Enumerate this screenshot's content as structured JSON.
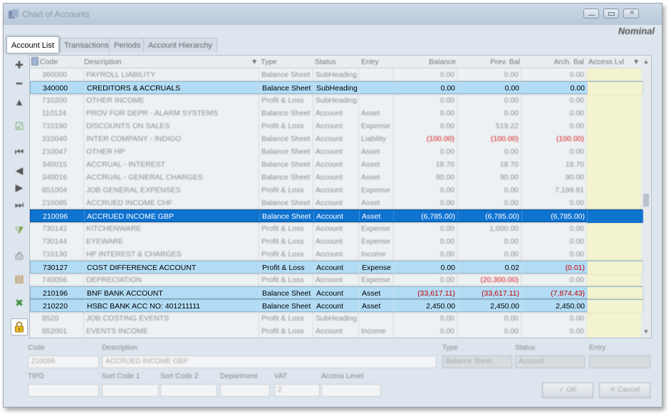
{
  "window": {
    "title": "Chart of Accounts",
    "brand": "Nominal"
  },
  "tabs": [
    "Account List",
    "Transactions",
    "Periods",
    "Account Hierarchy"
  ],
  "toolbar": {
    "icons": [
      "add-icon",
      "remove-icon",
      "up-icon",
      "check-icon",
      "first-icon",
      "prev-icon",
      "next-icon",
      "last-icon",
      "filter-icon",
      "print-icon",
      "report-icon",
      "excel-icon",
      "lock-icon"
    ]
  },
  "grid": {
    "headers": [
      "Code",
      "Description",
      "Type",
      "Status",
      "Entry",
      "Balance",
      "Prev. Bal",
      "Arch. Bal",
      "Access Lvl"
    ],
    "rows": [
      {
        "style": "dim",
        "code": "360000",
        "desc": "PAYROLL LIABILITY",
        "type": "Balance Sheet",
        "status": "SubHeading",
        "entry": "",
        "bal": "0.00",
        "prev": "0.00",
        "arch": "0.00"
      },
      {
        "style": "sharp",
        "code": "340000",
        "desc": "CREDITORS & ACCRUALS",
        "type": "Balance Sheet",
        "status": "SubHeading",
        "entry": "",
        "bal": "0.00",
        "prev": "0.00",
        "arch": "0.00"
      },
      {
        "style": "dim",
        "code": "710200",
        "desc": "OTHER INCOME",
        "type": "Profit & Loss",
        "status": "SubHeading",
        "entry": "",
        "bal": "0.00",
        "prev": "0.00",
        "arch": "0.00"
      },
      {
        "style": "dim",
        "code": "110124",
        "desc": "PROV FOR DEPR - ALARM SYSTEMS",
        "type": "Balance Sheet",
        "status": "Account",
        "entry": "Asset",
        "bal": "0.00",
        "prev": "0.00",
        "arch": "0.00"
      },
      {
        "style": "dim",
        "code": "710190",
        "desc": "DISCOUNTS ON SALES",
        "type": "Profit & Loss",
        "status": "Account",
        "entry": "Expense",
        "bal": "0.00",
        "prev": "519.22",
        "arch": "0.00"
      },
      {
        "style": "dim",
        "code": "310040",
        "desc": "INTER COMPANY - INDIGO",
        "type": "Balance Sheet",
        "status": "Account",
        "entry": "Liability",
        "bal": "(100.00)",
        "prev": "(100.00)",
        "arch": "(100.00)",
        "neg": true
      },
      {
        "style": "dim",
        "code": "210047",
        "desc": "OTHER HP",
        "type": "Balance Sheet",
        "status": "Account",
        "entry": "Asset",
        "bal": "0.00",
        "prev": "0.00",
        "arch": "0.00"
      },
      {
        "style": "dim",
        "code": "340015",
        "desc": "ACCRUAL - INTEREST",
        "type": "Balance Sheet",
        "status": "Account",
        "entry": "Asset",
        "bal": "18.70",
        "prev": "18.70",
        "arch": "18.70"
      },
      {
        "style": "dim",
        "code": "340016",
        "desc": "ACCRUAL - GENERAL CHARGES",
        "type": "Balance Sheet",
        "status": "Account",
        "entry": "Asset",
        "bal": "90.00",
        "prev": "90.00",
        "arch": "90.00"
      },
      {
        "style": "dim",
        "code": "851004",
        "desc": "JOB GENERAL EXPENSES",
        "type": "Profit & Loss",
        "status": "Account",
        "entry": "Expense",
        "bal": "0.00",
        "prev": "0.00",
        "arch": "7,199.81"
      },
      {
        "style": "dim",
        "code": "210095",
        "desc": "ACCRUED INCOME CHF",
        "type": "Balance Sheet",
        "status": "Account",
        "entry": "Asset",
        "bal": "0.00",
        "prev": "0.00",
        "arch": "0.00"
      },
      {
        "style": "sel",
        "code": "210096",
        "desc": "ACCRUED INCOME GBP",
        "type": "Balance Sheet",
        "status": "Account",
        "entry": "Asset",
        "bal": "(6,785.00)",
        "prev": "(6,785.00)",
        "arch": "(6,785.00)"
      },
      {
        "style": "dim",
        "code": "730142",
        "desc": "KITCHENWARE",
        "type": "Profit & Loss",
        "status": "Account",
        "entry": "Expense",
        "bal": "0.00",
        "prev": "1,000.00",
        "arch": "0.00"
      },
      {
        "style": "dim",
        "code": "730144",
        "desc": "EYEWARE",
        "type": "Profit & Loss",
        "status": "Account",
        "entry": "Expense",
        "bal": "0.00",
        "prev": "0.00",
        "arch": "0.00"
      },
      {
        "style": "dim",
        "code": "710130",
        "desc": "HP INTEREST & CHARGES",
        "type": "Profit & Loss",
        "status": "Account",
        "entry": "Income",
        "bal": "0.00",
        "prev": "0.00",
        "arch": "0.00"
      },
      {
        "style": "sharp",
        "code": "730127",
        "desc": "COST DIFFERENCE ACCOUNT",
        "type": "Profit & Loss",
        "status": "Account",
        "entry": "Expense",
        "bal": "0.00",
        "prev": "0.02",
        "arch": "(0.01)",
        "archNeg": true
      },
      {
        "style": "dim",
        "code": "740056",
        "desc": "DEPRECIATION",
        "type": "Profit & Loss",
        "status": "Account",
        "entry": "Expense",
        "bal": "0.00",
        "prev": "(20,300.00)",
        "arch": "0.00",
        "prevNeg": true
      },
      {
        "style": "sharp",
        "code": "210196",
        "desc": "BNF BANK ACCOUNT",
        "type": "Balance Sheet",
        "status": "Account",
        "entry": "Asset",
        "bal": "(33,617.11)",
        "prev": "(33,617.11)",
        "arch": "(7,874.43)",
        "neg": true
      },
      {
        "style": "sharp",
        "code": "210220",
        "desc": "HSBC BANK ACC NO: 401211111",
        "type": "Balance Sheet",
        "status": "Account",
        "entry": "Asset",
        "bal": "2,450.00",
        "prev": "2,450.00",
        "arch": "2,450.00"
      },
      {
        "style": "dim",
        "code": "8520",
        "desc": "JOB COSTING EVENTS",
        "type": "Profit & Loss",
        "status": "SubHeading",
        "entry": "",
        "bal": "0.00",
        "prev": "0.00",
        "arch": "0.00"
      },
      {
        "style": "dim",
        "code": "852001",
        "desc": "EVENTS INCOME",
        "type": "Profit & Loss",
        "status": "Account",
        "entry": "Income",
        "bal": "0.00",
        "prev": "0.00",
        "arch": "0.00"
      }
    ]
  },
  "form": {
    "code_label": "Code",
    "code_value": "210096",
    "desc_label": "Description",
    "desc_value": "ACCRUED INCOME GBP",
    "type_label": "Type",
    "type_value": "Balance Sheet",
    "status_label": "Status",
    "status_value": "Account",
    "entry_label": "Entry",
    "tipd_label": "TIPD",
    "sort1_label": "Sort Code 1",
    "sort2_label": "Sort Code 2",
    "dept_label": "Department",
    "vat_label": "VAT",
    "vat_value": "2",
    "access_label": "Access Level",
    "ok_label": "✓ OK",
    "cancel_label": "✕ Cancel"
  }
}
